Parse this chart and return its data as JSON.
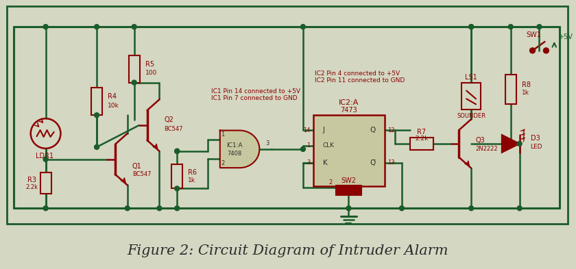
{
  "bg_color": "#d4d7c2",
  "border_color": "#1a5c2a",
  "wire_color": "#1a5c2a",
  "component_color": "#8b0000",
  "label_color": "#8b0000",
  "ic_fill": "#c8c8a0",
  "title": "Figure 2: Circuit Diagram of Intruder Alarm",
  "title_color": "#2c2c2c",
  "title_fontsize": 15,
  "note1": "IC1 Pin 14 connected to +5V\nIC1 Pin 7 connected to GND",
  "note2": "IC2 Pin 4 connected to +5V\nIC2 Pin 11 connected to GND"
}
